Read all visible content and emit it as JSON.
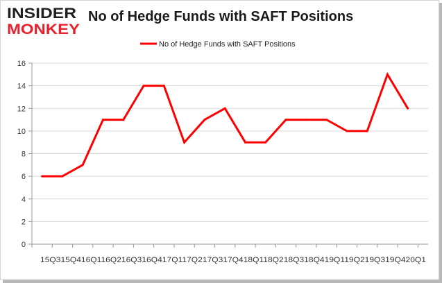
{
  "brand": {
    "logo_line1": "INSIDER",
    "logo_line2": "MONKEY",
    "colors": {
      "dark": "#1f1f1f",
      "red": "#e8212c"
    }
  },
  "chart_data": {
    "type": "line",
    "title": "No of Hedge Funds with SAFT Positions",
    "xlabel": "",
    "ylabel": "",
    "categories": [
      "2015Q3",
      "2015Q4",
      "2016Q1",
      "2016Q2",
      "2016Q3",
      "2016Q4",
      "2017Q1",
      "2017Q2",
      "2017Q3",
      "2017Q4",
      "2018Q1",
      "2018Q2",
      "2018Q3",
      "2018Q4",
      "2019Q1",
      "2019Q2",
      "2019Q3",
      "2019Q4",
      "2020Q1"
    ],
    "tick_text": "15Q315Q416Q116Q216Q316Q417Q117Q217Q317Q418Q118Q218Q318Q419Q119Q219Q319Q420Q1",
    "series": [
      {
        "name": "No of Hedge Funds with SAFT Positions",
        "color": "#ff0000",
        "values": [
          6,
          6,
          7,
          11,
          11,
          14,
          14,
          9,
          11,
          12,
          9,
          9,
          11,
          11,
          11,
          10,
          10,
          15,
          12
        ]
      }
    ],
    "ylim": [
      0,
      16
    ],
    "yticks": [
      0,
      2,
      4,
      6,
      8,
      10,
      12,
      14,
      16
    ],
    "grid": true,
    "legend": "top-center"
  }
}
